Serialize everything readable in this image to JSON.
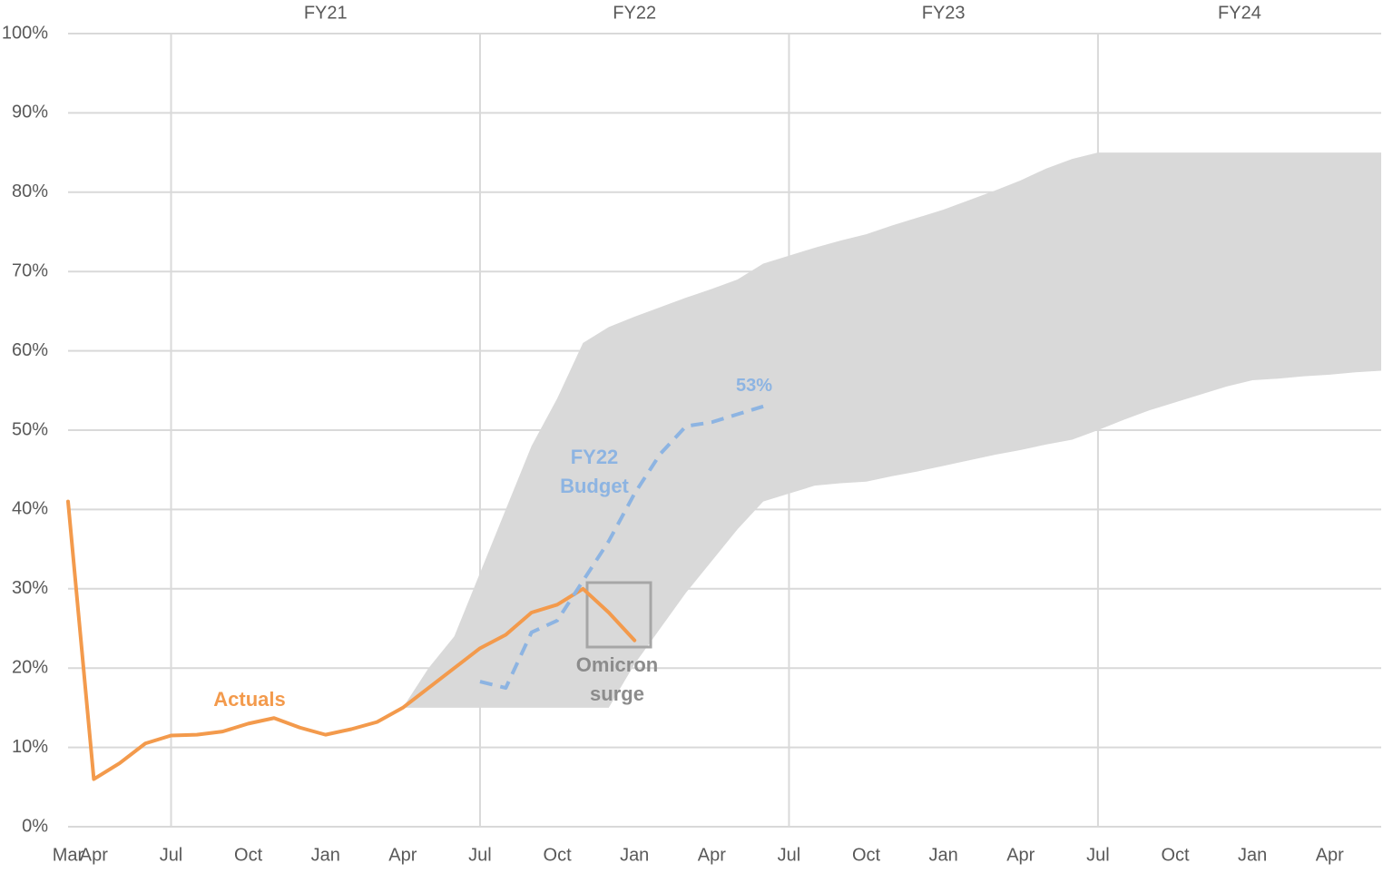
{
  "chart_data": {
    "type": "line",
    "categories": [
      "Mar",
      "Apr",
      null,
      null,
      "Jul",
      null,
      null,
      "Oct",
      null,
      null,
      "Jan",
      null,
      null,
      "Apr",
      null,
      null,
      "Jul",
      null,
      null,
      "Oct",
      null,
      null,
      "Jan",
      null,
      null,
      "Apr",
      null,
      null,
      "Jul",
      null,
      null,
      "Oct",
      null,
      null,
      "Jan",
      null,
      null,
      "Apr",
      null,
      null,
      "Jul",
      null,
      null,
      "Oct",
      null,
      null,
      "Jan",
      null,
      null,
      "Apr",
      null,
      null
    ],
    "fiscal_years": [
      "FY21",
      "FY22",
      "FY23",
      "FY24"
    ],
    "fiscal_year_start": "Jul",
    "ylim": [
      0,
      100
    ],
    "yticks": [
      {
        "value": 0,
        "label": "0%"
      },
      {
        "value": 10,
        "label": "10%"
      },
      {
        "value": 20,
        "label": "20%"
      },
      {
        "value": 30,
        "label": "30%"
      },
      {
        "value": 40,
        "label": "40%"
      },
      {
        "value": 50,
        "label": "50%"
      },
      {
        "value": 60,
        "label": "60%"
      },
      {
        "value": 70,
        "label": "70%"
      },
      {
        "value": 80,
        "label": "80%"
      },
      {
        "value": 90,
        "label": "90%"
      },
      {
        "value": 100,
        "label": "100%"
      }
    ],
    "grid": true,
    "band": {
      "color": "#d9d9d9",
      "upper": [
        null,
        null,
        null,
        null,
        null,
        null,
        null,
        null,
        null,
        null,
        null,
        null,
        null,
        15,
        20,
        24,
        32,
        40,
        48,
        54,
        61,
        63,
        64.3,
        65.5,
        66.7,
        67.8,
        69,
        71,
        72,
        73,
        73.9,
        74.7,
        75.8,
        76.8,
        77.8,
        79,
        80.2,
        81.5,
        83,
        84.2,
        85,
        85,
        85,
        85,
        85,
        85,
        85,
        85,
        85,
        85,
        85,
        85
      ],
      "lower": [
        null,
        null,
        null,
        null,
        null,
        null,
        null,
        null,
        null,
        null,
        null,
        null,
        null,
        15,
        15,
        15,
        15,
        15,
        15,
        15,
        15,
        15,
        20.5,
        25,
        29.5,
        33.5,
        37.5,
        41,
        42,
        43,
        43.3,
        43.5,
        44.2,
        44.8,
        45.5,
        46.2,
        46.9,
        47.5,
        48.2,
        48.8,
        50,
        51.3,
        52.5,
        53.5,
        54.5,
        55.5,
        56.3,
        56.5,
        56.8,
        57,
        57.3,
        57.5
      ]
    },
    "series": [
      {
        "name": "Actuals",
        "color": "#f39a4c",
        "values": [
          41,
          6,
          8,
          10.5,
          11.5,
          11.6,
          12,
          13,
          13.7,
          12.5,
          11.6,
          12.3,
          13.2,
          15,
          17.5,
          20,
          22.5,
          24.2,
          27,
          28,
          30,
          27,
          23.5,
          null,
          null,
          null,
          null,
          null,
          null,
          null,
          null,
          null,
          null,
          null,
          null,
          null,
          null,
          null,
          null,
          null,
          null,
          null,
          null,
          null,
          null,
          null,
          null,
          null,
          null,
          null,
          null,
          null
        ]
      },
      {
        "name": "FY22 Budget",
        "color": "#8db4e2",
        "dashed": true,
        "values": [
          null,
          null,
          null,
          null,
          null,
          null,
          null,
          null,
          null,
          null,
          null,
          null,
          null,
          null,
          null,
          null,
          18.3,
          17.5,
          24.5,
          26,
          31,
          36,
          42,
          47,
          50.5,
          51,
          52,
          53,
          null,
          null,
          null,
          null,
          null,
          null,
          null,
          null,
          null,
          null,
          null,
          null,
          null,
          null,
          null,
          null,
          null,
          null,
          null,
          null,
          null,
          null,
          null,
          null
        ],
        "value_labels": [
          null,
          null,
          null,
          null,
          null,
          null,
          null,
          null,
          null,
          null,
          null,
          null,
          null,
          null,
          null,
          null,
          null,
          null,
          null,
          null,
          null,
          null,
          null,
          null,
          null,
          null,
          null,
          "53%",
          null,
          null,
          null,
          null,
          null,
          null,
          null,
          null,
          null,
          null,
          null,
          null,
          null,
          null,
          null,
          null,
          null,
          null,
          null,
          null,
          null,
          null,
          null,
          null
        ]
      }
    ],
    "annotations": [
      {
        "text": "Omicron surge"
      }
    ]
  }
}
